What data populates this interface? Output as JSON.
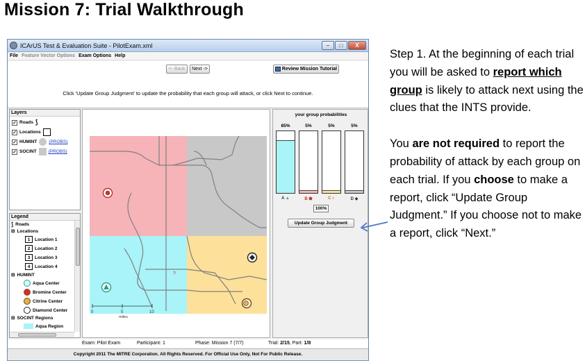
{
  "slide": {
    "title": "Mission 7: Trial Walkthrough"
  },
  "window": {
    "title": "ICArUS Test & Evaluation Suite - PilotExam.xml",
    "controls": {
      "minimize": "–",
      "maximize": "□",
      "close": "X"
    },
    "menu": [
      {
        "label": "File",
        "enabled": true
      },
      {
        "label": "Feature Vector Options",
        "enabled": false
      },
      {
        "label": "Exam Options",
        "enabled": true
      },
      {
        "label": "Help",
        "enabled": true
      }
    ],
    "toolbar": {
      "back_label": "<- Back",
      "next_label": "Next ->",
      "tutorial_label": "Review Mission Tutorial"
    },
    "instruction": "Click 'Update Group Judgment' to update the probability that each group will attack, or click Next to continue."
  },
  "layers": {
    "title": "Layers",
    "items": [
      {
        "label": "Roads",
        "checked": true,
        "link": ""
      },
      {
        "label": "Locations",
        "checked": true,
        "link": ""
      },
      {
        "label": "HUMINT",
        "checked": true,
        "link": "(PROBS)"
      },
      {
        "label": "SOCINT",
        "checked": true,
        "link": "(PROBS)"
      }
    ]
  },
  "legend": {
    "title": "Legend",
    "roads": "Roads",
    "locations_header": "Locations",
    "locations": [
      {
        "num": "1",
        "label": "Location 1"
      },
      {
        "num": "2",
        "label": "Location 2"
      },
      {
        "num": "3",
        "label": "Location 3"
      },
      {
        "num": "4",
        "label": "Location 4"
      }
    ],
    "humint_header": "HUMINT",
    "humint": [
      {
        "label": "Aqua Center",
        "color": "#2a9d8f"
      },
      {
        "label": "Bromine Center",
        "color": "#c0392b"
      },
      {
        "label": "Citrine Center",
        "color": "#c58a1a"
      },
      {
        "label": "Diamond Center",
        "color": "#222222"
      }
    ],
    "socint_header": "SOCINT Regions",
    "socint": [
      {
        "label": "Aqua Region",
        "color": "#a8f4f8"
      }
    ]
  },
  "map": {
    "scale_ticks": [
      "0",
      "5",
      "10"
    ],
    "scale_unit": "miles",
    "marker": "?",
    "region_colors": {
      "a": "#a8f4f8",
      "b": "#f6b3b8",
      "c": "#fde09a",
      "d": "#c8c8c8"
    }
  },
  "probabilities": {
    "title": "your group probabilities",
    "groups": [
      {
        "group": "A",
        "percent": 85,
        "label": "85%",
        "color": "#a8f4f8"
      },
      {
        "group": "B",
        "percent": 5,
        "label": "5%",
        "color": "#f6b3b8"
      },
      {
        "group": "C",
        "percent": 5,
        "label": "5%",
        "color": "#fde09a"
      },
      {
        "group": "D",
        "percent": 5,
        "label": "5%",
        "color": "#c8c8c8"
      }
    ],
    "total": "100%",
    "update_label": "Update Group Judgment"
  },
  "status": {
    "exam": "Exam: Pilot Exam",
    "participant": "Participant: 1",
    "phase": "Phase: Mission 7 (7/7)",
    "trial_prefix": "Trial: ",
    "trial_value": "2/15",
    "part_prefix": ", Part: ",
    "part_value": "1/8"
  },
  "copyright": "Copyright 2011 The MITRE Corporation. All Rights Reserved. For Official Use Only, Not For Public Release.",
  "explanation": {
    "p1": {
      "a": "Step 1. At the beginning of each trial you will be asked to ",
      "b": "report which group",
      "c": " is likely to attack next using the clues that the INTS provide."
    },
    "p2": {
      "a": "You ",
      "b": "are not required",
      "c": " to report the probability of attack by each group on each trial. If you ",
      "d": "choose",
      "e": " to make a report, click “Update Group Judgment.”  If you choose not to make a report, click “Next.”"
    }
  }
}
